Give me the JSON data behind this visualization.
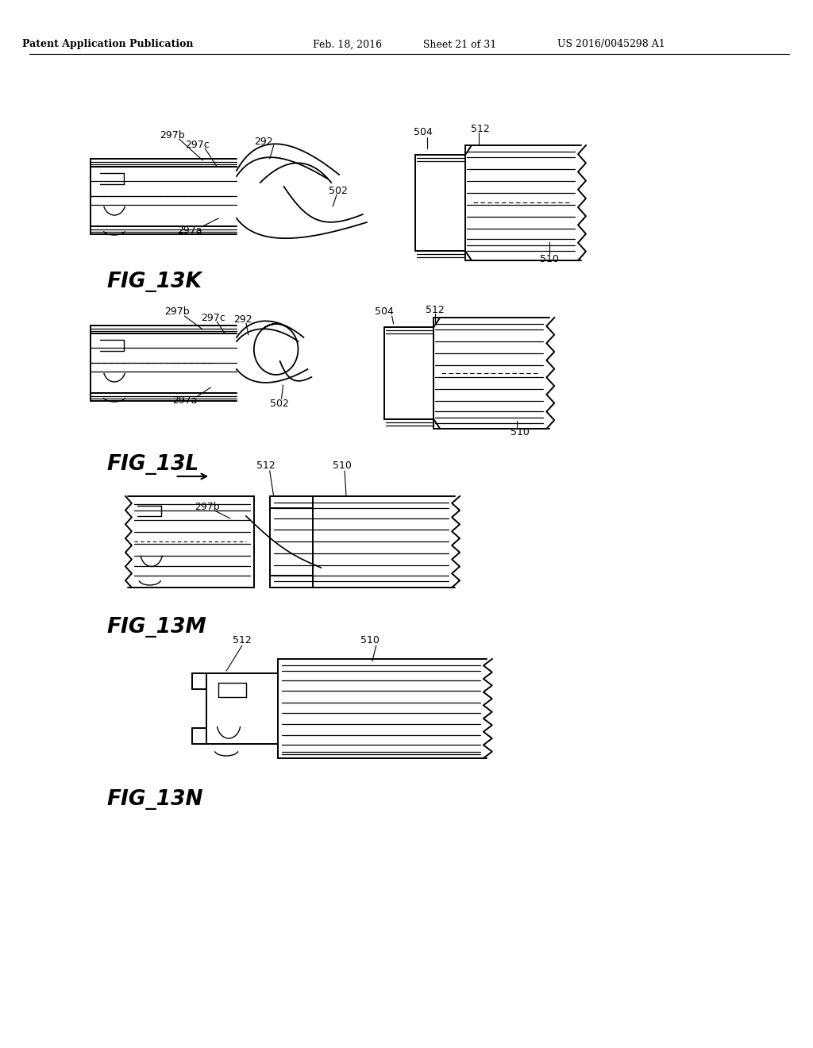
{
  "bg_color": "#ffffff",
  "header_text": "Patent Application Publication",
  "header_date": "Feb. 18, 2016",
  "header_sheet": "Sheet 21 of 31",
  "header_patent": "US 2016/0045298 A1"
}
